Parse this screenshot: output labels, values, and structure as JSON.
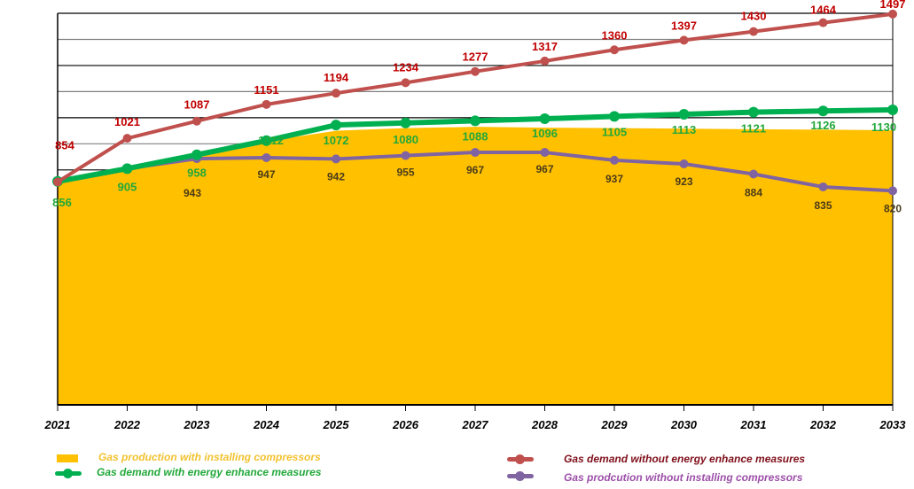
{
  "chart_data": {
    "type": "line",
    "title": "",
    "xlabel": "",
    "ylabel": "",
    "x": [
      "2021",
      "2022",
      "2023",
      "2024",
      "2025",
      "2026",
      "2027",
      "2028",
      "2029",
      "2030",
      "2031",
      "2032",
      "2033"
    ],
    "ylim": [
      0,
      1500
    ],
    "grid": true,
    "legend_position": "bottom",
    "series": [
      {
        "name": "Gas production with installing compressors",
        "kind": "area",
        "color": "#FFC000",
        "values": [
          856,
          905,
          958,
          1010,
          1050,
          1060,
          1065,
          1062,
          1060,
          1058,
          1056,
          1054,
          1052
        ],
        "labels": []
      },
      {
        "name": "Gas demand without energy enhance  measures",
        "kind": "line",
        "color": "#C0504D",
        "label_color": "#C00000",
        "values": [
          854,
          1021,
          1087,
          1151,
          1194,
          1234,
          1277,
          1317,
          1360,
          1397,
          1430,
          1464,
          1497
        ],
        "labels": [
          "854",
          "1021",
          "1087",
          "1151",
          "1194",
          "1234",
          "1277",
          "1317",
          "1360",
          "1397",
          "1430",
          "1464",
          "1497"
        ]
      },
      {
        "name": "Gas demand with energy enhance measures",
        "kind": "line",
        "color": "#00B050",
        "label_color": "#22A83A",
        "values": [
          856,
          905,
          958,
          1012,
          1072,
          1080,
          1088,
          1096,
          1105,
          1113,
          1121,
          1126,
          1130
        ],
        "labels": [
          "856",
          "905",
          "958",
          "1012",
          "1072",
          "1080",
          "1088",
          "1096",
          "1105",
          "1113",
          "1121",
          "1126",
          "1130"
        ]
      },
      {
        "name": "Gas prodcution without installing compressors",
        "kind": "line",
        "color": "#8064A2",
        "label_color": "#4A3B1A",
        "values": [
          856,
          905,
          943,
          947,
          942,
          955,
          967,
          967,
          937,
          923,
          884,
          835,
          820
        ],
        "labels": [
          "",
          "",
          "943",
          "947",
          "942",
          "955",
          "967",
          "967",
          "937",
          "923",
          "884",
          "835",
          "820"
        ]
      }
    ]
  }
}
